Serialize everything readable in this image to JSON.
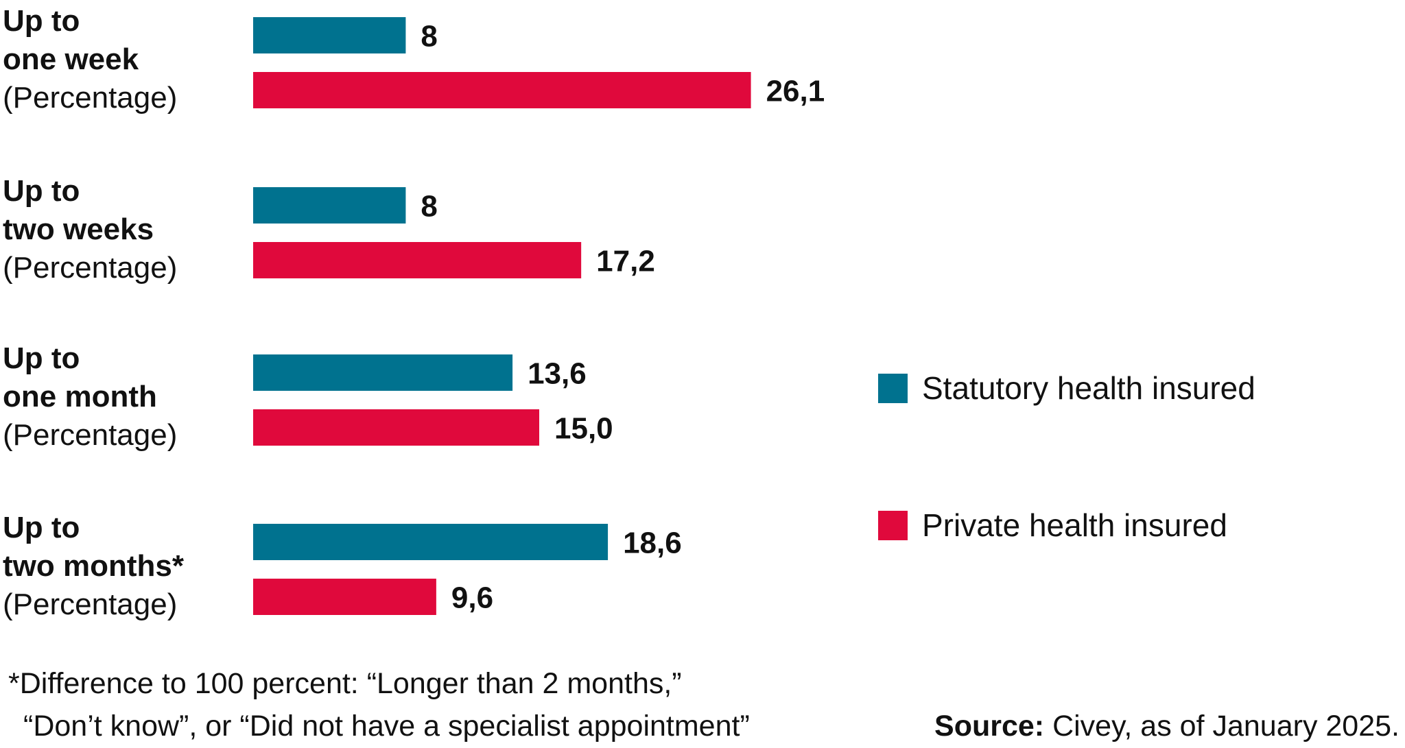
{
  "chart_data": {
    "type": "bar",
    "orientation": "horizontal",
    "categories": [
      [
        "Up to",
        "one week",
        "(Percentage)"
      ],
      [
        "Up to",
        "two weeks",
        "(Percentage)"
      ],
      [
        "Up to",
        "one month",
        "(Percentage)"
      ],
      [
        "Up to",
        "two months*",
        "(Percentage)"
      ]
    ],
    "series": [
      {
        "name": "Statutory health insured",
        "color": "#00728f",
        "values": [
          8,
          8,
          13.6,
          18.6
        ],
        "labels": [
          "8",
          "8",
          "13,6",
          "18,6"
        ]
      },
      {
        "name": "Private health insured",
        "color": "#e0093c",
        "values": [
          26.1,
          17.2,
          15.0,
          9.6
        ],
        "labels": [
          "26,1",
          "17,2",
          "15,0",
          "9,6"
        ]
      }
    ],
    "xlim": [
      0,
      30
    ],
    "grid": false,
    "legend": "right",
    "title": "",
    "xlabel": "",
    "ylabel": ""
  },
  "footnote": {
    "line1": "*Difference to 100 percent: “Longer than 2 months,”",
    "line2": "“Don’t know”, or “Did not have a specialist appointment”"
  },
  "source": {
    "label": "Source:",
    "text": " Civey, as of January 2025."
  }
}
